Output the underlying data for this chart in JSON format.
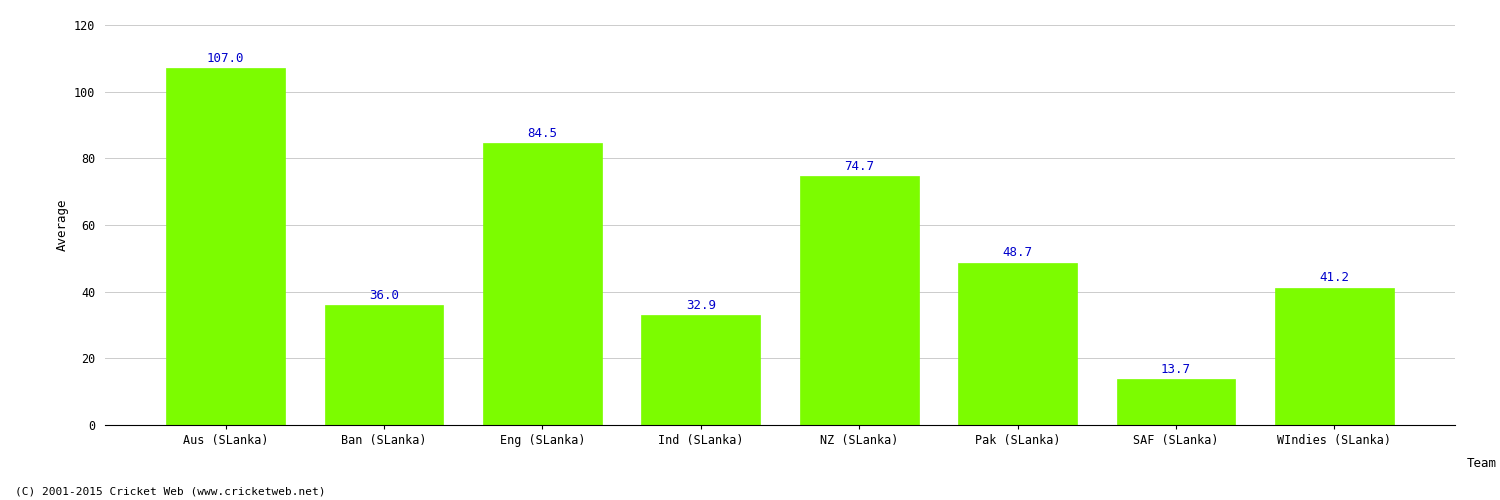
{
  "categories": [
    "Aus (SLanka)",
    "Ban (SLanka)",
    "Eng (SLanka)",
    "Ind (SLanka)",
    "NZ (SLanka)",
    "Pak (SLanka)",
    "SAF (SLanka)",
    "WIndies (SLanka)"
  ],
  "values": [
    107.0,
    36.0,
    84.5,
    32.9,
    74.7,
    48.7,
    13.7,
    41.2
  ],
  "bar_color": "#7CFC00",
  "bar_edge_color": "#7CFC00",
  "xlabel": "Team",
  "ylabel": "Average",
  "ylim": [
    0,
    120
  ],
  "yticks": [
    0,
    20,
    40,
    60,
    80,
    100,
    120
  ],
  "label_color": "#0000CC",
  "label_fontsize": 9,
  "axis_label_fontsize": 9,
  "tick_fontsize": 8.5,
  "background_color": "#ffffff",
  "grid_color": "#cccccc",
  "footer_text": "(C) 2001-2015 Cricket Web (www.cricketweb.net)",
  "footer_fontsize": 8
}
